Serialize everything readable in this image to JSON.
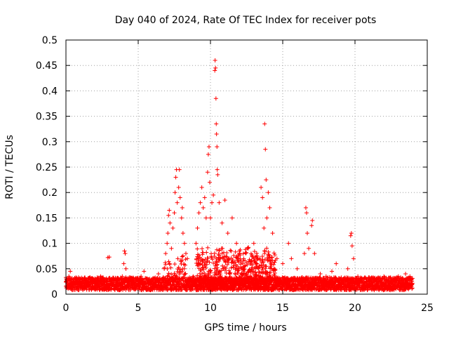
{
  "chart_data": {
    "type": "scatter",
    "title": "Day 040 of 2024, Rate Of TEC Index for receiver pots",
    "xlabel": "GPS time / hours",
    "ylabel": "ROTI / TECUs",
    "xlim": [
      0,
      25
    ],
    "ylim": [
      0,
      0.5
    ],
    "xticks": [
      0,
      5,
      10,
      15,
      20,
      25
    ],
    "xtick_labels": [
      "0",
      "5",
      "10",
      "15",
      "20",
      "25"
    ],
    "yticks": [
      0,
      0.05,
      0.1,
      0.15,
      0.2,
      0.25,
      0.3,
      0.35,
      0.4,
      0.45,
      0.5
    ],
    "ytick_labels": [
      "0",
      "0.05",
      "0.1",
      "0.15",
      "0.2",
      "0.25",
      "0.3",
      "0.35",
      "0.4",
      "0.45",
      "0.5"
    ],
    "grid": true,
    "marker": "+",
    "color": "#ff0000",
    "series": [
      {
        "name": "ROTI",
        "points": [
          [
            0.1,
            0.02
          ],
          [
            0.2,
            0.035
          ],
          [
            0.3,
            0.045
          ],
          [
            0.4,
            0.03
          ],
          [
            0.5,
            0.025
          ],
          [
            0.8,
            0.02
          ],
          [
            1.0,
            0.03
          ],
          [
            1.3,
            0.025
          ],
          [
            1.6,
            0.02
          ],
          [
            2.0,
            0.03
          ],
          [
            2.4,
            0.035
          ],
          [
            2.7,
            0.025
          ],
          [
            2.9,
            0.072
          ],
          [
            3.0,
            0.073
          ],
          [
            3.3,
            0.02
          ],
          [
            3.6,
            0.03
          ],
          [
            3.9,
            0.035
          ],
          [
            4.0,
            0.06
          ],
          [
            4.05,
            0.085
          ],
          [
            4.1,
            0.08
          ],
          [
            4.15,
            0.05
          ],
          [
            4.3,
            0.025
          ],
          [
            4.6,
            0.03
          ],
          [
            5.0,
            0.02
          ],
          [
            5.2,
            0.035
          ],
          [
            5.4,
            0.045
          ],
          [
            5.6,
            0.03
          ],
          [
            6.0,
            0.025
          ],
          [
            6.4,
            0.04
          ],
          [
            6.8,
            0.05
          ],
          [
            6.9,
            0.08
          ],
          [
            7.0,
            0.1
          ],
          [
            7.05,
            0.12
          ],
          [
            7.1,
            0.155
          ],
          [
            7.15,
            0.165
          ],
          [
            7.2,
            0.14
          ],
          [
            7.3,
            0.09
          ],
          [
            7.4,
            0.13
          ],
          [
            7.5,
            0.16
          ],
          [
            7.55,
            0.2
          ],
          [
            7.6,
            0.23
          ],
          [
            7.65,
            0.245
          ],
          [
            7.7,
            0.18
          ],
          [
            7.8,
            0.21
          ],
          [
            7.85,
            0.245
          ],
          [
            7.9,
            0.19
          ],
          [
            8.0,
            0.15
          ],
          [
            8.05,
            0.17
          ],
          [
            8.1,
            0.12
          ],
          [
            8.2,
            0.1
          ],
          [
            8.3,
            0.08
          ],
          [
            8.4,
            0.07
          ],
          [
            8.6,
            0.03
          ],
          [
            8.8,
            0.035
          ],
          [
            9.0,
            0.1
          ],
          [
            9.1,
            0.13
          ],
          [
            9.2,
            0.16
          ],
          [
            9.3,
            0.18
          ],
          [
            9.4,
            0.21
          ],
          [
            9.5,
            0.17
          ],
          [
            9.6,
            0.19
          ],
          [
            9.7,
            0.15
          ],
          [
            9.8,
            0.24
          ],
          [
            9.85,
            0.275
          ],
          [
            9.9,
            0.29
          ],
          [
            9.95,
            0.22
          ],
          [
            10.0,
            0.15
          ],
          [
            10.1,
            0.18
          ],
          [
            10.2,
            0.195
          ],
          [
            10.3,
            0.44
          ],
          [
            10.32,
            0.46
          ],
          [
            10.35,
            0.445
          ],
          [
            10.38,
            0.385
          ],
          [
            10.4,
            0.335
          ],
          [
            10.42,
            0.315
          ],
          [
            10.45,
            0.29
          ],
          [
            10.47,
            0.245
          ],
          [
            10.5,
            0.235
          ],
          [
            10.6,
            0.18
          ],
          [
            10.8,
            0.14
          ],
          [
            11.0,
            0.185
          ],
          [
            11.2,
            0.12
          ],
          [
            11.5,
            0.15
          ],
          [
            11.8,
            0.1
          ],
          [
            12.0,
            0.08
          ],
          [
            12.3,
            0.07
          ],
          [
            12.6,
            0.09
          ],
          [
            13.0,
            0.1
          ],
          [
            13.2,
            0.06
          ],
          [
            13.5,
            0.21
          ],
          [
            13.6,
            0.19
          ],
          [
            13.7,
            0.13
          ],
          [
            13.75,
            0.335
          ],
          [
            13.8,
            0.285
          ],
          [
            13.85,
            0.225
          ],
          [
            13.9,
            0.15
          ],
          [
            14.0,
            0.2
          ],
          [
            14.1,
            0.17
          ],
          [
            14.3,
            0.12
          ],
          [
            14.6,
            0.07
          ],
          [
            15.0,
            0.06
          ],
          [
            15.4,
            0.1
          ],
          [
            15.6,
            0.07
          ],
          [
            16.0,
            0.05
          ],
          [
            16.5,
            0.08
          ],
          [
            16.6,
            0.17
          ],
          [
            16.65,
            0.16
          ],
          [
            16.7,
            0.12
          ],
          [
            16.8,
            0.09
          ],
          [
            17.0,
            0.135
          ],
          [
            17.05,
            0.145
          ],
          [
            17.2,
            0.08
          ],
          [
            17.6,
            0.04
          ],
          [
            18.0,
            0.035
          ],
          [
            18.4,
            0.045
          ],
          [
            18.7,
            0.06
          ],
          [
            19.0,
            0.03
          ],
          [
            19.5,
            0.05
          ],
          [
            19.7,
            0.115
          ],
          [
            19.75,
            0.12
          ],
          [
            19.8,
            0.095
          ],
          [
            19.9,
            0.07
          ],
          [
            20.2,
            0.035
          ],
          [
            20.6,
            0.03
          ],
          [
            21.0,
            0.025
          ],
          [
            21.5,
            0.03
          ],
          [
            22.0,
            0.035
          ],
          [
            22.5,
            0.03
          ],
          [
            23.0,
            0.035
          ],
          [
            23.5,
            0.04
          ],
          [
            23.8,
            0.035
          ],
          [
            23.95,
            0.02
          ]
        ]
      }
    ]
  }
}
